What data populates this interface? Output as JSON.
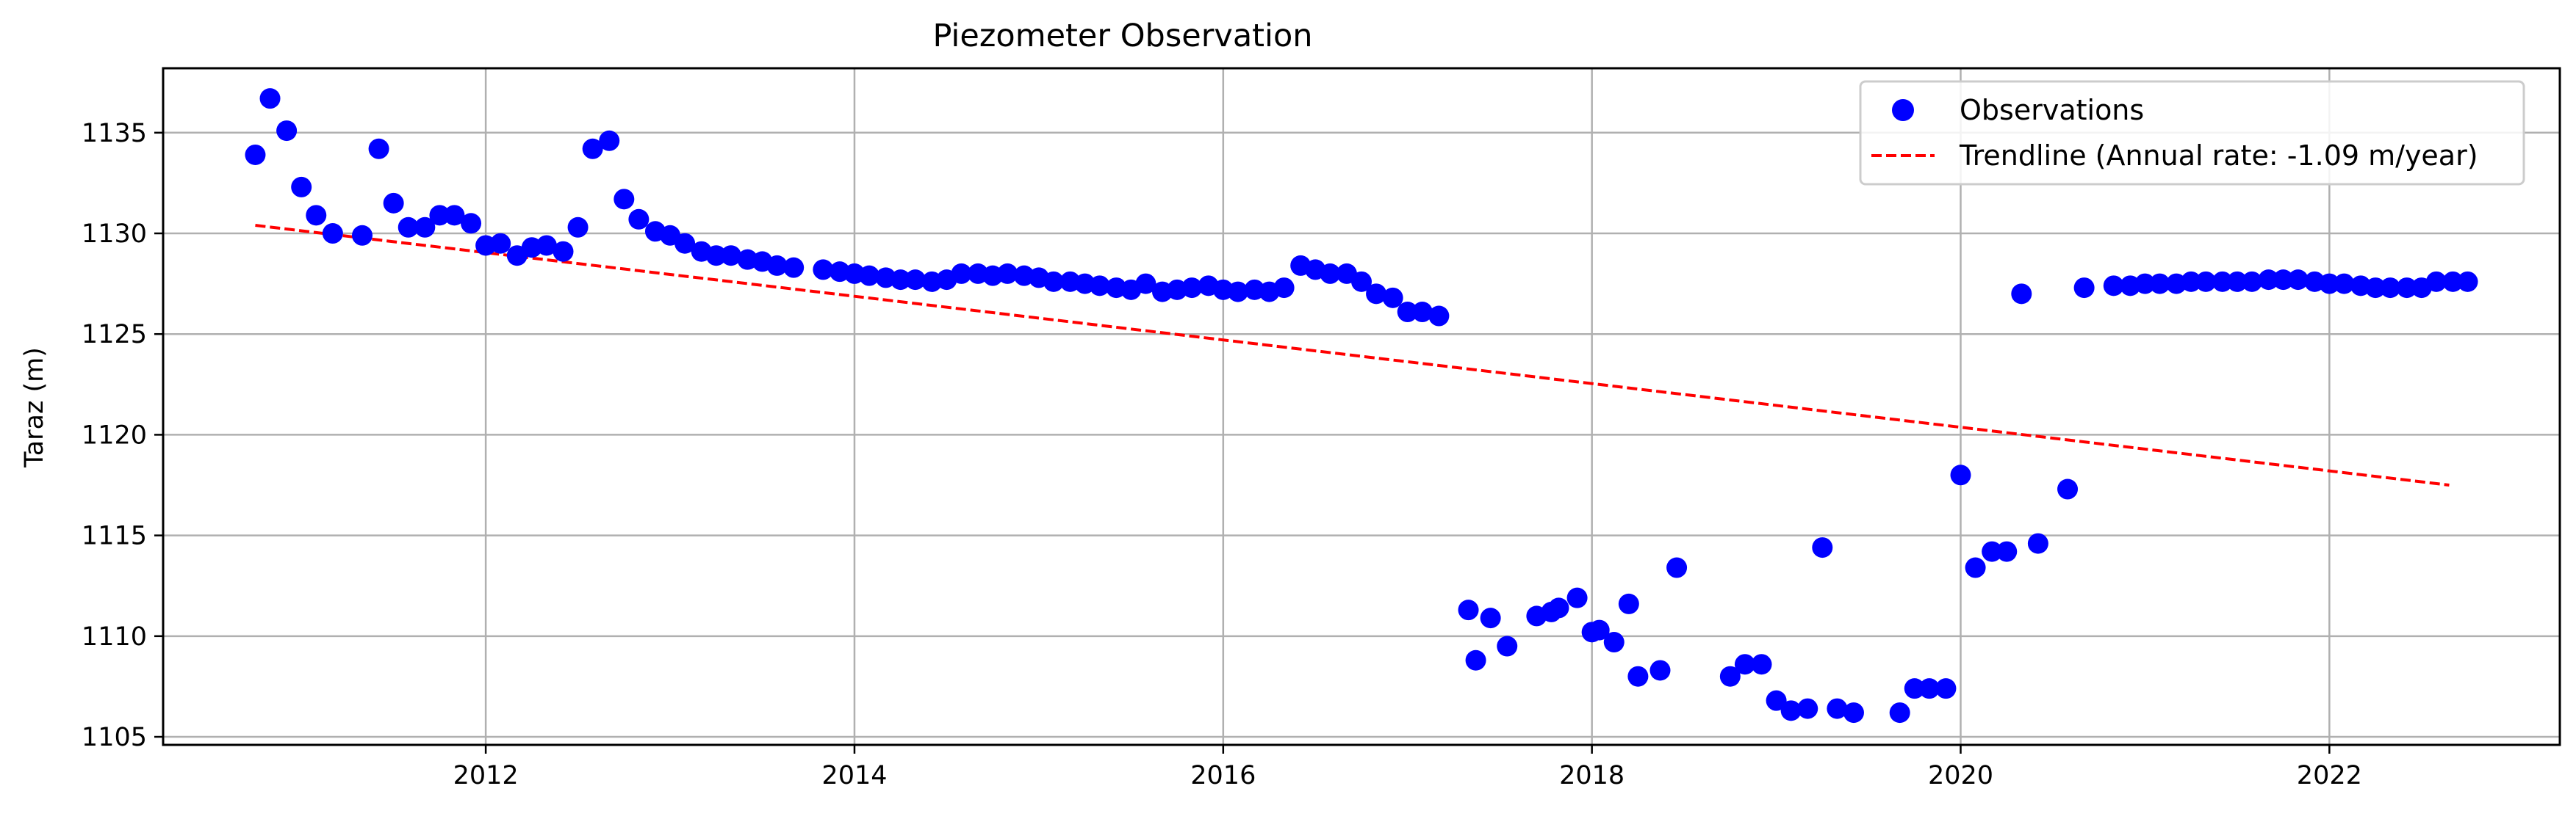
{
  "chart_data": {
    "type": "scatter",
    "title": "Piezometer Observation",
    "xlabel": "",
    "ylabel": "Taraz (m)",
    "xlim": [
      2010.25,
      2023.25
    ],
    "ylim": [
      1104.6,
      1138.2
    ],
    "x_ticks": [
      2012,
      2014,
      2016,
      2018,
      2020,
      2022
    ],
    "x_tick_labels": [
      "2012",
      "2014",
      "2016",
      "2018",
      "2020",
      "2022"
    ],
    "y_ticks": [
      1105,
      1110,
      1115,
      1120,
      1125,
      1130,
      1135
    ],
    "y_tick_labels": [
      "1105",
      "1110",
      "1115",
      "1120",
      "1125",
      "1130",
      "1135"
    ],
    "grid": true,
    "legend_position": "top-right",
    "series": [
      {
        "name": "Observations",
        "kind": "scatter",
        "color": "#0000ff",
        "points": [
          [
            2010.75,
            1133.9
          ],
          [
            2010.83,
            1136.7
          ],
          [
            2010.92,
            1135.1
          ],
          [
            2011.0,
            1132.3
          ],
          [
            2011.08,
            1130.9
          ],
          [
            2011.17,
            1130.0
          ],
          [
            2011.33,
            1129.9
          ],
          [
            2011.42,
            1134.2
          ],
          [
            2011.5,
            1131.5
          ],
          [
            2011.58,
            1130.3
          ],
          [
            2011.67,
            1130.3
          ],
          [
            2011.75,
            1130.9
          ],
          [
            2011.83,
            1130.9
          ],
          [
            2011.92,
            1130.5
          ],
          [
            2012.0,
            1129.4
          ],
          [
            2012.08,
            1129.5
          ],
          [
            2012.17,
            1128.9
          ],
          [
            2012.25,
            1129.3
          ],
          [
            2012.33,
            1129.4
          ],
          [
            2012.42,
            1129.1
          ],
          [
            2012.5,
            1130.3
          ],
          [
            2012.58,
            1134.2
          ],
          [
            2012.67,
            1134.6
          ],
          [
            2012.75,
            1131.7
          ],
          [
            2012.83,
            1130.7
          ],
          [
            2012.92,
            1130.1
          ],
          [
            2013.0,
            1129.9
          ],
          [
            2013.08,
            1129.5
          ],
          [
            2013.17,
            1129.1
          ],
          [
            2013.25,
            1128.9
          ],
          [
            2013.33,
            1128.9
          ],
          [
            2013.42,
            1128.7
          ],
          [
            2013.5,
            1128.6
          ],
          [
            2013.58,
            1128.4
          ],
          [
            2013.67,
            1128.3
          ],
          [
            2013.83,
            1128.2
          ],
          [
            2013.92,
            1128.1
          ],
          [
            2014.0,
            1128.0
          ],
          [
            2014.08,
            1127.9
          ],
          [
            2014.17,
            1127.8
          ],
          [
            2014.25,
            1127.7
          ],
          [
            2014.33,
            1127.7
          ],
          [
            2014.42,
            1127.6
          ],
          [
            2014.5,
            1127.7
          ],
          [
            2014.58,
            1128.0
          ],
          [
            2014.67,
            1128.0
          ],
          [
            2014.75,
            1127.9
          ],
          [
            2014.83,
            1128.0
          ],
          [
            2014.92,
            1127.9
          ],
          [
            2015.0,
            1127.8
          ],
          [
            2015.08,
            1127.6
          ],
          [
            2015.17,
            1127.6
          ],
          [
            2015.25,
            1127.5
          ],
          [
            2015.33,
            1127.4
          ],
          [
            2015.42,
            1127.3
          ],
          [
            2015.5,
            1127.2
          ],
          [
            2015.58,
            1127.5
          ],
          [
            2015.67,
            1127.1
          ],
          [
            2015.75,
            1127.2
          ],
          [
            2015.83,
            1127.3
          ],
          [
            2015.92,
            1127.4
          ],
          [
            2016.0,
            1127.2
          ],
          [
            2016.08,
            1127.1
          ],
          [
            2016.17,
            1127.2
          ],
          [
            2016.25,
            1127.1
          ],
          [
            2016.33,
            1127.3
          ],
          [
            2016.42,
            1128.4
          ],
          [
            2016.5,
            1128.2
          ],
          [
            2016.58,
            1128.0
          ],
          [
            2016.67,
            1128.0
          ],
          [
            2016.75,
            1127.6
          ],
          [
            2016.83,
            1127.0
          ],
          [
            2016.92,
            1126.8
          ],
          [
            2017.0,
            1126.1
          ],
          [
            2017.08,
            1126.1
          ],
          [
            2017.17,
            1125.9
          ],
          [
            2017.33,
            1111.3
          ],
          [
            2017.37,
            1108.8
          ],
          [
            2017.45,
            1110.9
          ],
          [
            2017.54,
            1109.5
          ],
          [
            2017.7,
            1111.0
          ],
          [
            2017.78,
            1111.2
          ],
          [
            2017.82,
            1111.4
          ],
          [
            2017.92,
            1111.9
          ],
          [
            2018.0,
            1110.2
          ],
          [
            2018.04,
            1110.3
          ],
          [
            2018.12,
            1109.7
          ],
          [
            2018.2,
            1111.6
          ],
          [
            2018.25,
            1108.0
          ],
          [
            2018.37,
            1108.3
          ],
          [
            2018.46,
            1113.4
          ],
          [
            2018.75,
            1108.0
          ],
          [
            2018.83,
            1108.6
          ],
          [
            2018.92,
            1108.6
          ],
          [
            2019.0,
            1106.8
          ],
          [
            2019.08,
            1106.3
          ],
          [
            2019.17,
            1106.4
          ],
          [
            2019.25,
            1114.4
          ],
          [
            2019.33,
            1106.4
          ],
          [
            2019.42,
            1106.2
          ],
          [
            2019.67,
            1106.2
          ],
          [
            2019.75,
            1107.4
          ],
          [
            2019.83,
            1107.4
          ],
          [
            2019.92,
            1107.4
          ],
          [
            2020.0,
            1118.0
          ],
          [
            2020.08,
            1113.4
          ],
          [
            2020.17,
            1114.2
          ],
          [
            2020.25,
            1114.2
          ],
          [
            2020.33,
            1127.0
          ],
          [
            2020.42,
            1114.6
          ],
          [
            2020.58,
            1117.3
          ],
          [
            2020.67,
            1127.3
          ],
          [
            2020.83,
            1127.4
          ],
          [
            2020.92,
            1127.4
          ],
          [
            2021.0,
            1127.5
          ],
          [
            2021.08,
            1127.5
          ],
          [
            2021.17,
            1127.5
          ],
          [
            2021.25,
            1127.6
          ],
          [
            2021.33,
            1127.6
          ],
          [
            2021.42,
            1127.6
          ],
          [
            2021.5,
            1127.6
          ],
          [
            2021.58,
            1127.6
          ],
          [
            2021.67,
            1127.7
          ],
          [
            2021.75,
            1127.7
          ],
          [
            2021.83,
            1127.7
          ],
          [
            2021.92,
            1127.6
          ],
          [
            2022.0,
            1127.5
          ],
          [
            2022.08,
            1127.5
          ],
          [
            2022.17,
            1127.4
          ],
          [
            2022.25,
            1127.3
          ],
          [
            2022.33,
            1127.3
          ],
          [
            2022.42,
            1127.3
          ],
          [
            2022.5,
            1127.3
          ],
          [
            2022.58,
            1127.6
          ],
          [
            2022.67,
            1127.6
          ],
          [
            2022.75,
            1127.6
          ]
        ]
      },
      {
        "name": "Trendline (Annual rate: -1.09 m/year)",
        "kind": "line",
        "style": "dashed",
        "color": "#ff0000",
        "points": [
          [
            2010.75,
            1130.4
          ],
          [
            2022.65,
            1117.5
          ]
        ]
      }
    ]
  }
}
